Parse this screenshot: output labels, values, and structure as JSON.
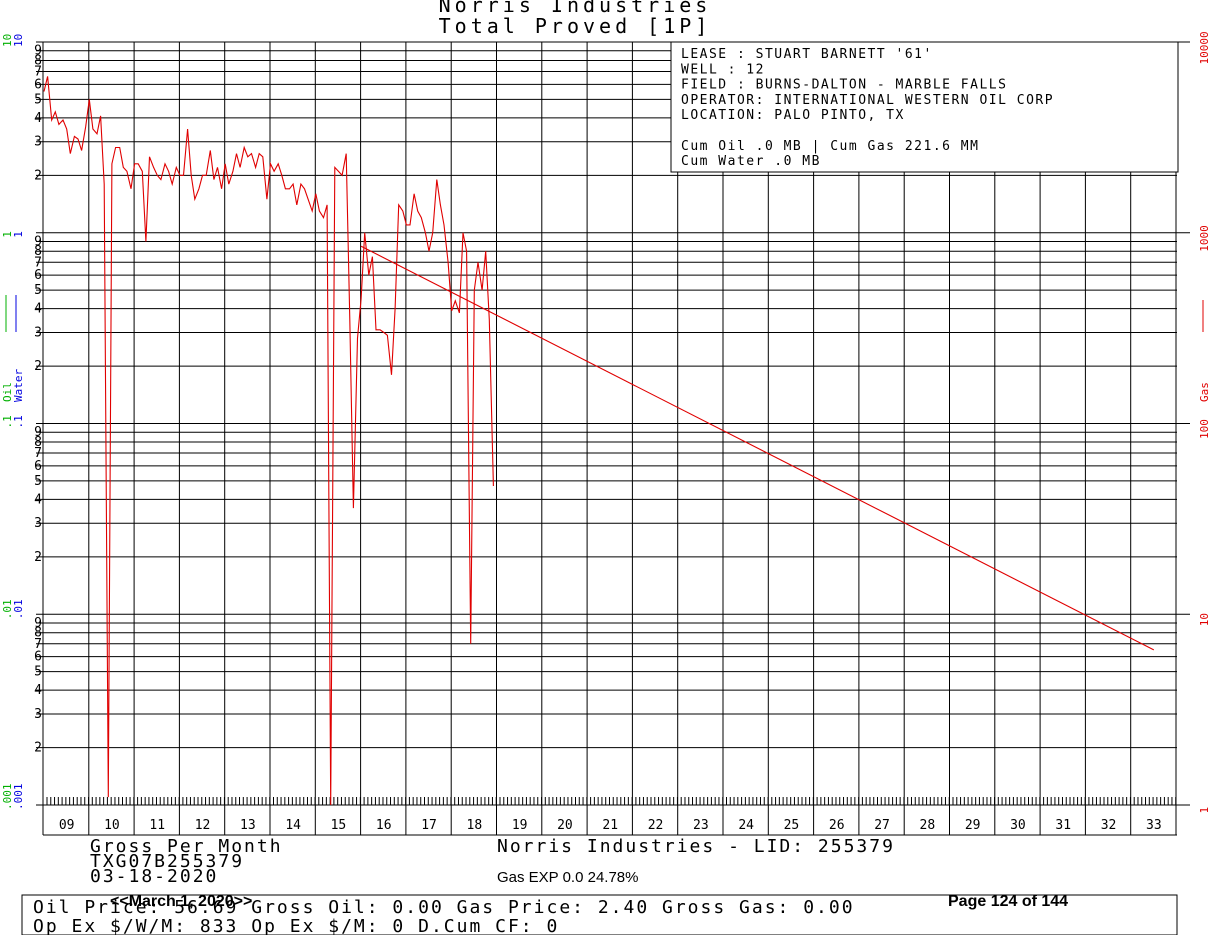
{
  "header": {
    "title_line1": "Norris Industries",
    "title_line2": "Total Proved [1P]"
  },
  "info_box": {
    "lines": [
      "LEASE    : STUART BARNETT '61'",
      "WELL     :  12",
      "FIELD    : BURNS-DALTON - MARBLE FALLS",
      "OPERATOR: INTERNATIONAL WESTERN OIL CORP",
      "LOCATION: PALO PINTO, TX",
      "",
      "Cum Oil .0 MB | Cum Gas 221.6 MM",
      "Cum Water .0 MB"
    ]
  },
  "footer": {
    "gross_label": "Gross Per Month",
    "lease_code": "TXG07B255379",
    "date": "03-18-2020",
    "company_lid": "Norris Industries - LID: 255379",
    "gas_exp": "Gas EXP 0.0 24.78%",
    "date_nav": "<<March 1, 2020>>",
    "page": "Page 124 of 144",
    "price_row1": "Oil Price: 56.69  Gross Oil: 0.00  Gas Price: 2.40  Gross Gas: 0.00",
    "price_row2": "Op Ex $/W/M: 833    Op Ex $/M: 0    D.Cum CF: 0"
  },
  "colors": {
    "gas": "#e00000",
    "oil": "#00b000",
    "water": "#0000e0",
    "grid": "#000000"
  },
  "chart_data": {
    "type": "line",
    "x_label_axis": [
      "09",
      "10",
      "11",
      "12",
      "13",
      "14",
      "15",
      "16",
      "17",
      "18",
      "19",
      "20",
      "21",
      "22",
      "23",
      "24",
      "25",
      "26",
      "27",
      "28",
      "29",
      "30",
      "31",
      "32",
      "33"
    ],
    "left_axis": {
      "oil_label": "Oil",
      "water_label": "Water",
      "scale": "log",
      "decade_labels": [
        "10",
        "1",
        ".1",
        ".01",
        ".001"
      ],
      "minor_labels": [
        "2",
        "3",
        "4",
        "5",
        "6",
        "7",
        "8",
        "9"
      ]
    },
    "right_axis": {
      "label": "Gas",
      "scale": "log",
      "decade_labels": [
        "10000",
        "1000",
        "100",
        "10",
        "1"
      ],
      "ylim": [
        1,
        10000
      ]
    },
    "series": [
      {
        "name": "Gas",
        "color": "#e00000",
        "points": [
          [
            2009.0,
            5500
          ],
          [
            2009.08,
            6600
          ],
          [
            2009.17,
            3900
          ],
          [
            2009.25,
            4300
          ],
          [
            2009.33,
            3700
          ],
          [
            2009.42,
            3900
          ],
          [
            2009.5,
            3500
          ],
          [
            2009.58,
            2600
          ],
          [
            2009.67,
            3200
          ],
          [
            2009.75,
            3100
          ],
          [
            2009.83,
            2700
          ],
          [
            2009.92,
            3600
          ],
          [
            2010.0,
            5000
          ],
          [
            2010.08,
            3500
          ],
          [
            2010.17,
            3300
          ],
          [
            2010.25,
            4100
          ],
          [
            2010.33,
            1800
          ],
          [
            2010.42,
            1.1
          ],
          [
            2010.5,
            2300
          ],
          [
            2010.58,
            2800
          ],
          [
            2010.67,
            2800
          ],
          [
            2010.75,
            2200
          ],
          [
            2010.83,
            2100
          ],
          [
            2010.92,
            1700
          ],
          [
            2011.0,
            2300
          ],
          [
            2011.08,
            2300
          ],
          [
            2011.17,
            2100
          ],
          [
            2011.25,
            900
          ],
          [
            2011.33,
            2500
          ],
          [
            2011.42,
            2200
          ],
          [
            2011.5,
            2000
          ],
          [
            2011.58,
            1900
          ],
          [
            2011.67,
            2300
          ],
          [
            2011.75,
            2100
          ],
          [
            2011.83,
            1800
          ],
          [
            2011.92,
            2200
          ],
          [
            2012.0,
            2000
          ],
          [
            2012.08,
            2000
          ],
          [
            2012.17,
            3500
          ],
          [
            2012.25,
            2000
          ],
          [
            2012.33,
            1500
          ],
          [
            2012.42,
            1700
          ],
          [
            2012.5,
            2000
          ],
          [
            2012.58,
            2000
          ],
          [
            2012.67,
            2700
          ],
          [
            2012.75,
            1900
          ],
          [
            2012.83,
            2200
          ],
          [
            2012.92,
            1700
          ],
          [
            2013.0,
            2300
          ],
          [
            2013.08,
            1800
          ],
          [
            2013.17,
            2100
          ],
          [
            2013.25,
            2600
          ],
          [
            2013.33,
            2200
          ],
          [
            2013.42,
            2800
          ],
          [
            2013.5,
            2500
          ],
          [
            2013.58,
            2600
          ],
          [
            2013.67,
            2200
          ],
          [
            2013.75,
            2600
          ],
          [
            2013.83,
            2500
          ],
          [
            2013.92,
            1500
          ],
          [
            2014.0,
            2300
          ],
          [
            2014.08,
            2100
          ],
          [
            2014.17,
            2300
          ],
          [
            2014.25,
            2000
          ],
          [
            2014.33,
            1700
          ],
          [
            2014.42,
            1700
          ],
          [
            2014.5,
            1800
          ],
          [
            2014.58,
            1400
          ],
          [
            2014.67,
            1800
          ],
          [
            2014.75,
            1700
          ],
          [
            2014.83,
            1500
          ],
          [
            2014.92,
            1300
          ],
          [
            2015.0,
            1600
          ],
          [
            2015.08,
            1300
          ],
          [
            2015.17,
            1200
          ],
          [
            2015.25,
            1400
          ],
          [
            2015.33,
            1.0
          ],
          [
            2015.42,
            2200
          ],
          [
            2015.5,
            2100
          ],
          [
            2015.58,
            2000
          ],
          [
            2015.67,
            2600
          ],
          [
            2015.75,
            350
          ],
          [
            2015.83,
            36
          ],
          [
            2015.92,
            280
          ],
          [
            2016.0,
            450
          ],
          [
            2016.08,
            1000
          ],
          [
            2016.17,
            600
          ],
          [
            2016.25,
            750
          ],
          [
            2016.33,
            310
          ],
          [
            2016.42,
            310
          ],
          [
            2016.5,
            300
          ],
          [
            2016.58,
            290
          ],
          [
            2016.67,
            180
          ],
          [
            2016.75,
            400
          ],
          [
            2016.83,
            1400
          ],
          [
            2016.92,
            1300
          ],
          [
            2017.0,
            1100
          ],
          [
            2017.08,
            1100
          ],
          [
            2017.17,
            1600
          ],
          [
            2017.25,
            1300
          ],
          [
            2017.33,
            1200
          ],
          [
            2017.42,
            1000
          ],
          [
            2017.5,
            800
          ],
          [
            2017.58,
            1000
          ],
          [
            2017.67,
            1900
          ],
          [
            2017.75,
            1400
          ],
          [
            2017.83,
            1100
          ],
          [
            2017.92,
            700
          ],
          [
            2018.0,
            390
          ],
          [
            2018.08,
            440
          ],
          [
            2018.17,
            380
          ],
          [
            2018.25,
            1000
          ],
          [
            2018.33,
            800
          ],
          [
            2018.42,
            7
          ],
          [
            2018.5,
            500
          ],
          [
            2018.58,
            700
          ],
          [
            2018.67,
            500
          ],
          [
            2018.75,
            800
          ],
          [
            2018.83,
            350
          ],
          [
            2018.92,
            47
          ]
        ]
      },
      {
        "name": "Gas forecast",
        "color": "#e00000",
        "points": [
          [
            2016.0,
            850
          ],
          [
            2033.5,
            6.5
          ]
        ]
      }
    ]
  }
}
